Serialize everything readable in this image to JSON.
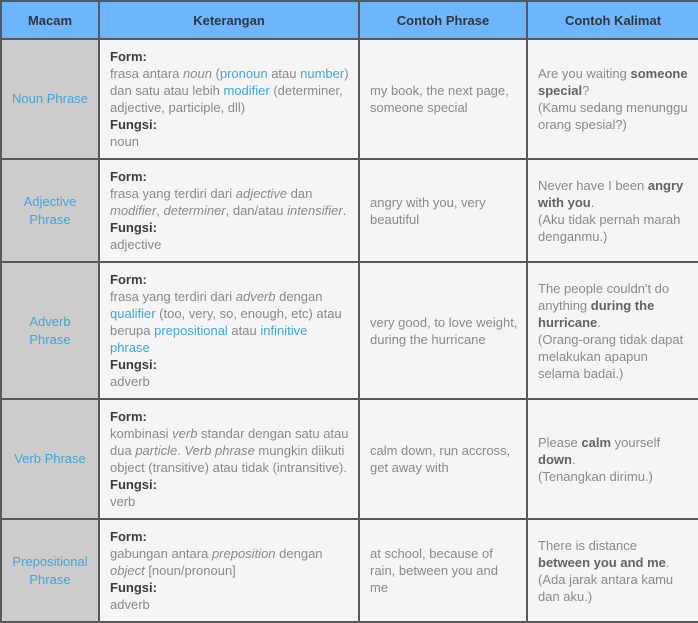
{
  "colors": {
    "header_bg": "#6db5fc",
    "header_text": "#31363c",
    "border": "#58595b",
    "macam_bg": "#cccccc",
    "cell_bg": "#f5f5f5",
    "link_blue": "#3da7da",
    "body_text": "#8a8a8a",
    "bold_dark": "#3d3d3d",
    "bold_kalimat": "#636363"
  },
  "table": {
    "columns": [
      "Macam",
      "Keterangan",
      "Contoh Phrase",
      "Contoh Kalimat"
    ],
    "rows": [
      {
        "macam": "Noun Phrase",
        "keterangan": [
          {
            "t": "Form:",
            "s": "bold"
          },
          {
            "s": "br"
          },
          {
            "t": "frasa antara ",
            "s": "plain"
          },
          {
            "t": "noun",
            "s": "italic"
          },
          {
            "t": " (",
            "s": "plain"
          },
          {
            "t": "pronoun",
            "s": "link"
          },
          {
            "t": " atau ",
            "s": "plain"
          },
          {
            "t": "number",
            "s": "link"
          },
          {
            "t": ") dan satu atau lebih ",
            "s": "plain"
          },
          {
            "t": "modifier",
            "s": "link"
          },
          {
            "t": " (determiner, adjective, participle, dll)",
            "s": "plain"
          },
          {
            "s": "br"
          },
          {
            "t": "Fungsi:",
            "s": "bold"
          },
          {
            "s": "br"
          },
          {
            "t": "noun",
            "s": "plain"
          }
        ],
        "contoh_phrase": "my book, the next page, someone special",
        "contoh_kalimat": [
          {
            "t": "Are you waiting ",
            "s": "plain"
          },
          {
            "t": "someone special",
            "s": "bold"
          },
          {
            "t": "?",
            "s": "plain"
          },
          {
            "s": "br"
          },
          {
            "t": "(Kamu sedang menunggu orang spesial?)",
            "s": "plain"
          }
        ]
      },
      {
        "macam": "Adjective Phrase",
        "keterangan": [
          {
            "t": "Form:",
            "s": "bold"
          },
          {
            "s": "br"
          },
          {
            "t": "frasa yang terdiri dari ",
            "s": "plain"
          },
          {
            "t": "adjective",
            "s": "italic"
          },
          {
            "t": " dan ",
            "s": "plain"
          },
          {
            "t": "modifier",
            "s": "italic"
          },
          {
            "t": ", ",
            "s": "plain"
          },
          {
            "t": "determiner",
            "s": "italic"
          },
          {
            "t": ", dan/atau ",
            "s": "plain"
          },
          {
            "t": "intensifier",
            "s": "italic"
          },
          {
            "t": ".",
            "s": "plain"
          },
          {
            "s": "br"
          },
          {
            "t": "Fungsi:",
            "s": "bold"
          },
          {
            "s": "br"
          },
          {
            "t": "adjective",
            "s": "plain"
          }
        ],
        "contoh_phrase": "angry with you, very beautiful",
        "contoh_kalimat": [
          {
            "t": "Never have I been ",
            "s": "plain"
          },
          {
            "t": "angry with you",
            "s": "bold"
          },
          {
            "t": ".",
            "s": "plain"
          },
          {
            "s": "br"
          },
          {
            "t": "(Aku tidak pernah marah denganmu.)",
            "s": "plain"
          }
        ]
      },
      {
        "macam": "Adverb Phrase",
        "keterangan": [
          {
            "t": "Form:",
            "s": "bold"
          },
          {
            "s": "br"
          },
          {
            "t": "frasa yang terdiri dari ",
            "s": "plain"
          },
          {
            "t": "adverb",
            "s": "italic"
          },
          {
            "t": " dengan ",
            "s": "plain"
          },
          {
            "t": "qualifier",
            "s": "link"
          },
          {
            "t": " (too, very, so, enough, etc) atau berupa ",
            "s": "plain"
          },
          {
            "t": "prepositional",
            "s": "link"
          },
          {
            "t": " atau ",
            "s": "plain"
          },
          {
            "t": "infinitive phrase",
            "s": "link"
          },
          {
            "s": "br"
          },
          {
            "t": "Fungsi:",
            "s": "bold"
          },
          {
            "s": "br"
          },
          {
            "t": "adverb",
            "s": "plain"
          }
        ],
        "contoh_phrase": "very good, to love weight, during the hurricane",
        "contoh_kalimat": [
          {
            "t": "The people couldn't do anything ",
            "s": "plain"
          },
          {
            "t": "during the hurricane",
            "s": "bold"
          },
          {
            "t": ".",
            "s": "plain"
          },
          {
            "s": "br"
          },
          {
            "t": "(Orang-orang tidak dapat melakukan apapun selama badai.)",
            "s": "plain"
          }
        ]
      },
      {
        "macam": "Verb Phrase",
        "keterangan": [
          {
            "t": "Form:",
            "s": "bold"
          },
          {
            "s": "br"
          },
          {
            "t": "kombinasi ",
            "s": "plain"
          },
          {
            "t": "verb",
            "s": "italic"
          },
          {
            "t": " standar dengan satu atau dua ",
            "s": "plain"
          },
          {
            "t": "particle",
            "s": "italic"
          },
          {
            "t": ". ",
            "s": "plain"
          },
          {
            "t": "Verb phrase",
            "s": "italic"
          },
          {
            "t": " mungkin diikuti object (transitive) atau tidak (intransitive).",
            "s": "plain"
          },
          {
            "s": "br"
          },
          {
            "t": "Fungsi:",
            "s": "bold"
          },
          {
            "s": "br"
          },
          {
            "t": "verb",
            "s": "plain"
          }
        ],
        "contoh_phrase": "calm down, run accross, get away with",
        "contoh_kalimat": [
          {
            "t": "Please ",
            "s": "plain"
          },
          {
            "t": "calm",
            "s": "bold"
          },
          {
            "t": " yourself ",
            "s": "plain"
          },
          {
            "t": "down",
            "s": "bold"
          },
          {
            "t": ".",
            "s": "plain"
          },
          {
            "s": "br"
          },
          {
            "t": "(Tenangkan dirimu.)",
            "s": "plain"
          }
        ]
      },
      {
        "macam": "Prepositional Phrase",
        "keterangan": [
          {
            "t": "Form:",
            "s": "bold"
          },
          {
            "s": "br"
          },
          {
            "t": "gabungan antara ",
            "s": "plain"
          },
          {
            "t": "preposition",
            "s": "italic"
          },
          {
            "t": " dengan ",
            "s": "plain"
          },
          {
            "t": "object",
            "s": "italic"
          },
          {
            "t": " [noun/pronoun]",
            "s": "plain"
          },
          {
            "s": "br"
          },
          {
            "t": "Fungsi:",
            "s": "bold"
          },
          {
            "s": "br"
          },
          {
            "t": "adverb",
            "s": "plain"
          }
        ],
        "contoh_phrase": "at school, because of rain, between you and me",
        "contoh_kalimat": [
          {
            "t": "There is distance ",
            "s": "plain"
          },
          {
            "t": "between you and me",
            "s": "bold"
          },
          {
            "t": ".",
            "s": "plain"
          },
          {
            "s": "br"
          },
          {
            "t": "(Ada jarak antara kamu dan aku.)",
            "s": "plain"
          }
        ]
      }
    ]
  }
}
